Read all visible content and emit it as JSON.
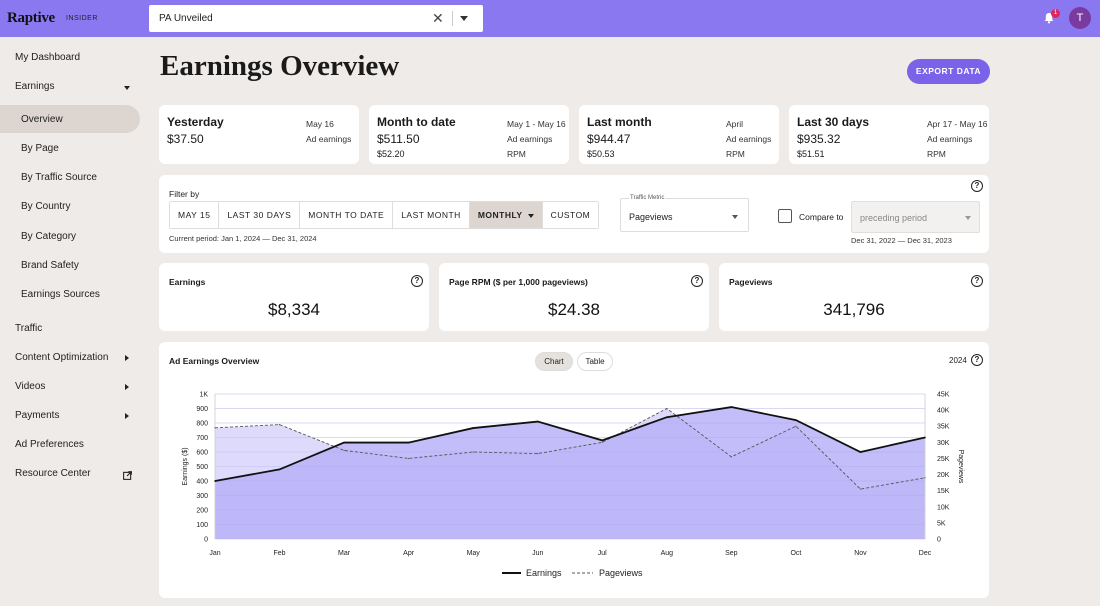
{
  "brand": {
    "logo": "Raptive",
    "sub": "INSIDER",
    "accent": "#8978f0"
  },
  "site_select": {
    "value": "PA Unveiled"
  },
  "notifications": {
    "count": "1"
  },
  "user": {
    "initial": "T"
  },
  "sidebar": {
    "my_dashboard": "My Dashboard",
    "earnings": "Earnings",
    "earnings_sub": [
      "Overview",
      "By Page",
      "By Traffic Source",
      "By Country",
      "By Category",
      "Brand Safety",
      "Earnings Sources"
    ],
    "traffic": "Traffic",
    "content_optimization": "Content Optimization",
    "videos": "Videos",
    "payments": "Payments",
    "ad_preferences": "Ad Preferences",
    "resource_center": "Resource Center"
  },
  "page": {
    "title": "Earnings Overview",
    "export_label": "EXPORT DATA"
  },
  "summary": [
    {
      "title": "Yesterday",
      "value": "$37.50",
      "date": "May 16",
      "label1": "Ad earnings",
      "value2": "",
      "label2": ""
    },
    {
      "title": "Month to date",
      "value": "$511.50",
      "date": "May 1 - May 16",
      "label1": "Ad earnings",
      "value2": "$52.20",
      "label2": "RPM"
    },
    {
      "title": "Last month",
      "value": "$944.47",
      "date": "April",
      "label1": "Ad earnings",
      "value2": "$50.53",
      "label2": "RPM"
    },
    {
      "title": "Last 30 days",
      "value": "$935.32",
      "date": "Apr 17 - May 16",
      "label1": "Ad earnings",
      "value2": "$51.51",
      "label2": "RPM"
    }
  ],
  "filter": {
    "label": "Filter by",
    "options": [
      "MAY 15",
      "LAST 30 DAYS",
      "MONTH TO DATE",
      "LAST MONTH",
      "MONTHLY",
      "CUSTOM"
    ],
    "active": "MONTHLY",
    "current_period": "Current period: Jan 1, 2024 — Dec 31, 2024",
    "metric_label": "Traffic Metric",
    "metric_value": "Pageviews",
    "compare_label": "Compare to",
    "compare_placeholder": "preceding period",
    "compare_range": "Dec 31, 2022 — Dec 31, 2023"
  },
  "kpis": [
    {
      "title": "Earnings",
      "value": "$8,334"
    },
    {
      "title": "Page RPM ($ per 1,000 pageviews)",
      "value": "$24.38"
    },
    {
      "title": "Pageviews",
      "value": "341,796"
    }
  ],
  "chart_panel": {
    "title": "Ad Earnings Overview",
    "tab_chart": "Chart",
    "tab_table": "Table",
    "year": "2024"
  },
  "chart_data": {
    "type": "area",
    "categories": [
      "Jan",
      "Feb",
      "Mar",
      "Apr",
      "May",
      "Jun",
      "Jul",
      "Aug",
      "Sep",
      "Oct",
      "Nov",
      "Dec"
    ],
    "series": [
      {
        "name": "Earnings",
        "axis": "left",
        "values": [
          400,
          480,
          665,
          665,
          765,
          810,
          680,
          840,
          910,
          820,
          600,
          700
        ]
      },
      {
        "name": "Pageviews",
        "axis": "right",
        "values": [
          34500,
          35500,
          27500,
          25000,
          27000,
          26500,
          30000,
          40500,
          25500,
          35000,
          15500,
          19000
        ]
      }
    ],
    "ylabel": "Earnings ($)",
    "y2label": "Pageviews",
    "ylim": [
      0,
      1000
    ],
    "y2lim": [
      0,
      45000
    ],
    "yticks": [
      "0",
      "100",
      "200",
      "300",
      "400",
      "500",
      "600",
      "700",
      "800",
      "900",
      "1K"
    ],
    "y2ticks": [
      "0",
      "5K",
      "10K",
      "15K",
      "20K",
      "25K",
      "30K",
      "35K",
      "40K",
      "45K"
    ],
    "legend": [
      "Earnings",
      "Pageviews"
    ],
    "colors": {
      "earnings_line": "#111111",
      "earnings_fill": "#b8b2f8",
      "pageviews_fill": "#dcd8fb",
      "pageviews_line": "#555555"
    }
  }
}
